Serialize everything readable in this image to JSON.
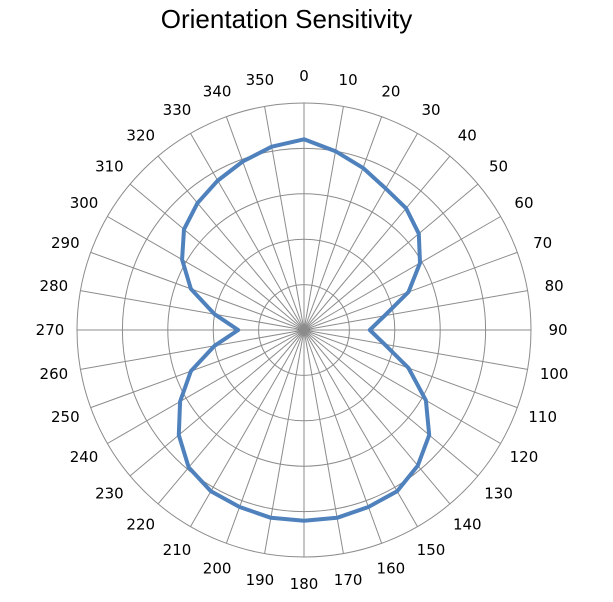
{
  "chart_data": {
    "type": "radar",
    "title": "Orientation Sensitivity",
    "angles": [
      0,
      10,
      20,
      30,
      40,
      50,
      60,
      70,
      80,
      90,
      100,
      110,
      120,
      130,
      140,
      150,
      160,
      170,
      180,
      190,
      200,
      210,
      220,
      230,
      240,
      250,
      260,
      270,
      280,
      290,
      300,
      310,
      320,
      330,
      340,
      350
    ],
    "angle_labels": [
      "0",
      "10",
      "20",
      "30",
      "40",
      "50",
      "60",
      "70",
      "80",
      "90",
      "100",
      "110",
      "120",
      "130",
      "140",
      "150",
      "160",
      "170",
      "180",
      "190",
      "200",
      "210",
      "220",
      "230",
      "240",
      "250",
      "260",
      "270",
      "280",
      "290",
      "300",
      "310",
      "320",
      "330",
      "340",
      "350"
    ],
    "radial_range": [
      0,
      10
    ],
    "radial_rings": 5,
    "grid": true,
    "legend": "none",
    "series": [
      {
        "color": "#4F81BD",
        "values": [
          8.4,
          8.0,
          7.6,
          7.2,
          7.0,
          6.6,
          5.9,
          4.9,
          3.6,
          2.9,
          3.6,
          4.9,
          6.2,
          7.2,
          7.8,
          8.2,
          8.3,
          8.4,
          8.4,
          8.4,
          8.3,
          8.2,
          7.9,
          7.2,
          6.3,
          5.3,
          4.0,
          2.9,
          4.0,
          5.3,
          6.2,
          6.9,
          7.3,
          7.6,
          7.9,
          8.2
        ]
      }
    ]
  }
}
